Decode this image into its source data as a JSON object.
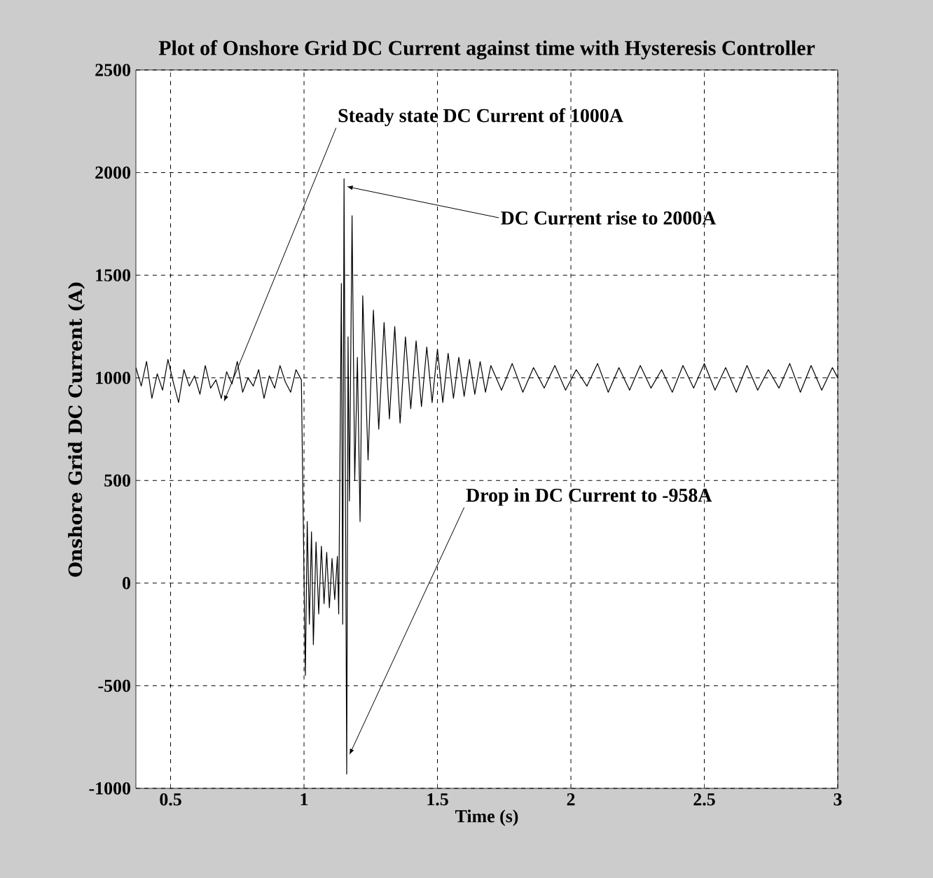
{
  "chart_data": {
    "type": "line",
    "title": "Plot of Onshore Grid DC Current against time with Hysteresis Controller",
    "xlabel": "Time (s)",
    "ylabel": "Onshore Grid DC Current (A)",
    "xlim": [
      0.37,
      3
    ],
    "ylim": [
      -1000,
      2500
    ],
    "xticks": [
      0.5,
      1,
      1.5,
      2,
      2.5,
      3
    ],
    "yticks": [
      -1000,
      -500,
      0,
      500,
      1000,
      1500,
      2000,
      2500
    ],
    "grid": true,
    "marker": "none",
    "line_style": "solid",
    "annotations": [
      {
        "text": "Steady state DC Current of 1000A",
        "x": 0.7,
        "y": 884
      },
      {
        "text": "DC Current rise to 2000A",
        "x": 1.16,
        "y": 1932
      },
      {
        "text": "Drop in DC Current to -958A",
        "x": 1.17,
        "y": -837
      }
    ],
    "series": [
      {
        "color": "#000000",
        "x": [
          0.37,
          0.39,
          0.41,
          0.43,
          0.45,
          0.47,
          0.49,
          0.51,
          0.53,
          0.55,
          0.57,
          0.59,
          0.61,
          0.63,
          0.65,
          0.67,
          0.69,
          0.71,
          0.73,
          0.75,
          0.77,
          0.79,
          0.81,
          0.83,
          0.85,
          0.87,
          0.89,
          0.91,
          0.93,
          0.95,
          0.97,
          0.99,
          1.005,
          1.012,
          1.02,
          1.028,
          1.035,
          1.045,
          1.055,
          1.065,
          1.075,
          1.085,
          1.095,
          1.105,
          1.115,
          1.125,
          1.13,
          1.14,
          1.145,
          1.15,
          1.16,
          1.165,
          1.17,
          1.18,
          1.19,
          1.2,
          1.21,
          1.22,
          1.24,
          1.26,
          1.28,
          1.3,
          1.32,
          1.34,
          1.36,
          1.38,
          1.4,
          1.42,
          1.44,
          1.46,
          1.48,
          1.5,
          1.52,
          1.54,
          1.56,
          1.58,
          1.6,
          1.62,
          1.64,
          1.66,
          1.68,
          1.7,
          1.74,
          1.78,
          1.82,
          1.86,
          1.9,
          1.94,
          1.98,
          2.02,
          2.06,
          2.1,
          2.14,
          2.18,
          2.22,
          2.26,
          2.3,
          2.34,
          2.38,
          2.42,
          2.46,
          2.5,
          2.54,
          2.58,
          2.62,
          2.66,
          2.7,
          2.74,
          2.78,
          2.82,
          2.86,
          2.9,
          2.94,
          2.98,
          3.0
        ],
        "values": [
          1050,
          960,
          1080,
          900,
          1020,
          940,
          1090,
          980,
          880,
          1040,
          960,
          1010,
          920,
          1060,
          950,
          990,
          900,
          1030,
          970,
          1080,
          930,
          1000,
          960,
          1040,
          900,
          1010,
          950,
          1060,
          980,
          930,
          1040,
          990,
          -450,
          300,
          -200,
          250,
          -300,
          200,
          -150,
          180,
          -100,
          150,
          -120,
          120,
          -80,
          130,
          -150,
          1460,
          -200,
          1970,
          -930,
          1200,
          400,
          1790,
          500,
          1100,
          300,
          1400,
          600,
          1330,
          750,
          1270,
          800,
          1250,
          780,
          1200,
          850,
          1180,
          860,
          1150,
          880,
          1140,
          880,
          1120,
          900,
          1100,
          910,
          1090,
          920,
          1080,
          930,
          1060,
          940,
          1070,
          930,
          1050,
          950,
          1060,
          940,
          1040,
          960,
          1070,
          930,
          1050,
          940,
          1060,
          950,
          1040,
          930,
          1060,
          950,
          1070,
          940,
          1050,
          930,
          1060,
          940,
          1040,
          950,
          1070,
          930,
          1060,
          940,
          1050,
          1000
        ]
      }
    ]
  }
}
